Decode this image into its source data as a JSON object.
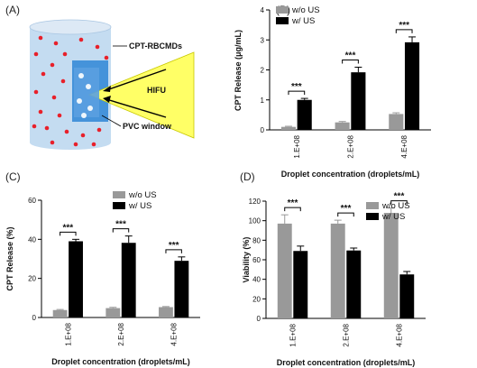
{
  "panel_a": {
    "label": "(A)",
    "labels": {
      "droplets": "CPT-RBCMDs",
      "hifu": "HIFU",
      "window": "PVC window"
    },
    "colors": {
      "tube": "#b9d5ef",
      "window": "#2f86d6",
      "droplet": "#e8202a",
      "beam": "#ffff66"
    }
  },
  "chart_data": [
    {
      "panel": "(B)",
      "type": "bar",
      "categories": [
        "1.E+08",
        "2.E+08",
        "4.E+08"
      ],
      "xlabel": "Droplet concentration (droplets/mL)",
      "ylabel": "CPT Release (μg/mL)",
      "ylim": [
        0,
        4
      ],
      "yticks": [
        0,
        1,
        2,
        3,
        4
      ],
      "legend": "top-left",
      "series": [
        {
          "name": "w/o US",
          "color": "#999999",
          "values": [
            0.1,
            0.25,
            0.53
          ],
          "errors": [
            0.02,
            0.03,
            0.04
          ]
        },
        {
          "name": "w/ US",
          "color": "#000000",
          "values": [
            1.0,
            1.92,
            2.92
          ],
          "errors": [
            0.05,
            0.17,
            0.18
          ]
        }
      ],
      "significance": [
        "***",
        "***",
        "***"
      ]
    },
    {
      "panel": "(C)",
      "type": "bar",
      "categories": [
        "1.E+08",
        "2.E+08",
        "4.E+08"
      ],
      "xlabel": "Droplet concentration (droplets/mL)",
      "ylabel": "CPT Release (%)",
      "ylim": [
        0,
        60
      ],
      "yticks": [
        0,
        20,
        40,
        60
      ],
      "legend": "top-right",
      "series": [
        {
          "name": "w/o US",
          "color": "#999999",
          "values": [
            3.8,
            4.8,
            5.3
          ],
          "errors": [
            0.3,
            0.4,
            0.3
          ]
        },
        {
          "name": "w/ US",
          "color": "#000000",
          "values": [
            39,
            38.2,
            29
          ],
          "errors": [
            1.0,
            3.5,
            2.0
          ]
        }
      ],
      "significance": [
        "***",
        "***",
        "***"
      ]
    },
    {
      "panel": "(D)",
      "type": "bar",
      "categories": [
        "1.E+08",
        "2.E+08",
        "4.E+08"
      ],
      "xlabel": "Droplet concentration (droplets/mL)",
      "ylabel": "Viability (%)",
      "ylim": [
        0,
        120
      ],
      "yticks": [
        0,
        20,
        40,
        60,
        80,
        100,
        120
      ],
      "legend": "top-right",
      "series": [
        {
          "name": "w/o US",
          "color": "#999999",
          "values": [
            97,
            97,
            108
          ],
          "errors": [
            9,
            3.5,
            5
          ]
        },
        {
          "name": "w/ US",
          "color": "#000000",
          "values": [
            69,
            69.5,
            45
          ],
          "errors": [
            5,
            2.5,
            3
          ]
        }
      ],
      "significance": [
        "***",
        "***",
        "***"
      ]
    }
  ]
}
